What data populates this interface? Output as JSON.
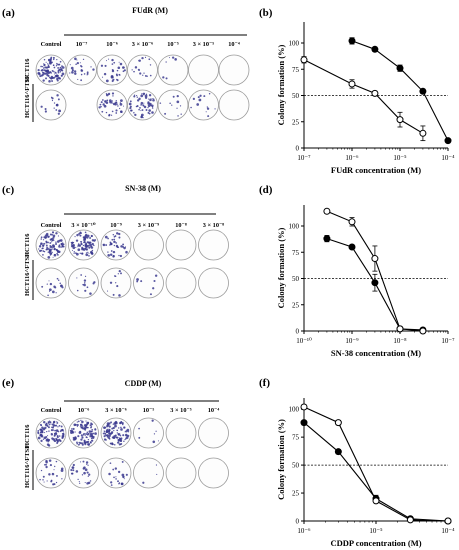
{
  "panels": [
    {
      "letter": "(a)",
      "drug": "FUdR (M)",
      "col_labels": [
        "Control",
        "10⁻⁷",
        "10⁻⁶",
        "3 × 10⁻⁶",
        "10⁻⁵",
        "3 × 10⁻⁵",
        "10⁻⁴"
      ],
      "row_labels": [
        "HCT116",
        "HCT116^FTSF"
      ],
      "well_density": [
        [
          1.0,
          0.25,
          0.3,
          0.15,
          0.05,
          0.0,
          0.0
        ],
        [
          0.15,
          null,
          0.4,
          0.55,
          0.1,
          0.12,
          0.0
        ]
      ],
      "well_color": "#3b3a8f"
    },
    {
      "letter": "(c)",
      "drug": "SN-38 (M)",
      "col_labels": [
        "Control",
        "3 × 10⁻¹⁰",
        "10⁻⁹",
        "3 × 10⁻⁹",
        "10⁻⁸",
        "3 × 10⁻⁸"
      ],
      "row_labels": [
        "HCT116",
        "HCT116^FTSF"
      ],
      "well_density": [
        [
          0.9,
          0.85,
          0.35,
          0.0,
          0.0,
          0.0
        ],
        [
          0.15,
          0.12,
          0.1,
          0.06,
          0.0,
          0.0
        ]
      ],
      "well_color": "#3b3a8f"
    },
    {
      "letter": "(e)",
      "drug": "CDDP (M)",
      "col_labels": [
        "Control",
        "10⁻⁶",
        "3 × 10⁻⁶",
        "10⁻⁵",
        "3 × 10⁻⁵",
        "10⁻⁴"
      ],
      "row_labels": [
        "HCT116",
        "HCT116^FTSF"
      ],
      "well_density": [
        [
          1.0,
          1.0,
          0.95,
          0.06,
          0.0,
          0.0
        ],
        [
          0.25,
          0.25,
          0.2,
          0.03,
          0.0,
          0.0
        ]
      ],
      "well_color": "#3b3a8f"
    }
  ],
  "chart_data": [
    {
      "letter": "(b)",
      "type": "line",
      "xscale": "log",
      "xlim": [
        1e-07,
        0.0001
      ],
      "x_tick_labels": [
        "10⁻⁷",
        "10⁻⁶",
        "10⁻⁵",
        "10⁻⁴"
      ],
      "ylim": [
        0,
        120
      ],
      "y_ticks": [
        0,
        25,
        50,
        75,
        100
      ],
      "xlabel": "FUdR concentration (M)",
      "ylabel": "Colony formation (%)",
      "reference_line": 50,
      "series": [
        {
          "marker": "filled",
          "x": [
            1e-06,
            3e-06,
            1e-05,
            3e-05,
            0.0001
          ],
          "y": [
            102,
            94,
            76,
            54,
            7
          ],
          "err": [
            3,
            2,
            3,
            2,
            1
          ]
        },
        {
          "marker": "open",
          "x": [
            1e-07,
            1e-06,
            3e-06,
            1e-05,
            3e-05
          ],
          "y": [
            84,
            61,
            52,
            27,
            14
          ],
          "err": [
            3,
            4,
            2,
            7,
            7
          ]
        }
      ]
    },
    {
      "letter": "(d)",
      "type": "line",
      "xscale": "log",
      "xlim": [
        1e-10,
        1e-07
      ],
      "x_tick_labels": [
        "10⁻¹⁰",
        "10⁻⁹",
        "10⁻⁸",
        "10⁻⁷"
      ],
      "ylim": [
        0,
        120
      ],
      "y_ticks": [
        0,
        25,
        50,
        75,
        100
      ],
      "xlabel": "SN-38 concentration (M)",
      "ylabel": "Colony formation (%)",
      "reference_line": 50,
      "series": [
        {
          "marker": "filled",
          "x": [
            3e-10,
            1e-09,
            3e-09,
            1e-08,
            3e-08
          ],
          "y": [
            88,
            80,
            46,
            2,
            1
          ],
          "err": [
            3,
            2,
            8,
            1,
            0
          ]
        },
        {
          "marker": "open",
          "x": [
            3e-10,
            1e-09,
            3e-09,
            1e-08,
            3e-08
          ],
          "y": [
            114,
            104,
            69,
            2,
            0
          ],
          "err": [
            2,
            4,
            12,
            1,
            0
          ]
        }
      ]
    },
    {
      "letter": "(f)",
      "type": "line",
      "xscale": "log",
      "xlim": [
        1e-06,
        0.0001
      ],
      "x_tick_labels": [
        "10⁻⁶",
        "10⁻⁵",
        "10⁻⁴"
      ],
      "ylim": [
        0,
        110
      ],
      "y_ticks": [
        0,
        25,
        50,
        75,
        100
      ],
      "xlabel": "CDDP concentration (M)",
      "ylabel": "Colony formation (%)",
      "reference_line": 50,
      "series": [
        {
          "marker": "filled",
          "x": [
            1e-06,
            3e-06,
            1e-05,
            3e-05,
            0.0001
          ],
          "y": [
            88,
            62,
            20,
            2,
            0
          ],
          "err": [
            2,
            2,
            3,
            1,
            0
          ]
        },
        {
          "marker": "open",
          "x": [
            1e-06,
            3e-06,
            1e-05,
            3e-05,
            0.0001
          ],
          "y": [
            102,
            88,
            18,
            1,
            0
          ],
          "err": [
            2,
            2,
            2,
            1,
            0
          ]
        }
      ]
    }
  ]
}
